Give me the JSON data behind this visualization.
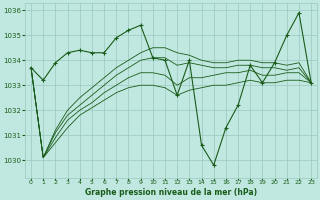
{
  "bg_color": "#c0e8e0",
  "grid_color": "#9cc8c0",
  "line_color": "#1a5c1a",
  "xlabel": "Graphe pression niveau de la mer (hPa)",
  "xlim": [
    -0.5,
    23.5
  ],
  "ylim": [
    1029.3,
    1036.3
  ],
  "yticks": [
    1030,
    1031,
    1032,
    1033,
    1034,
    1035,
    1036
  ],
  "xtick_labels": [
    "0",
    "1",
    "2",
    "3",
    "4",
    "5",
    "6",
    "7",
    "8",
    "9",
    "10",
    "11",
    "12",
    "13",
    "14",
    "15",
    "16",
    "17",
    "18",
    "19",
    "20",
    "21",
    "22",
    "23"
  ],
  "main_line": [
    1033.7,
    1033.2,
    1033.9,
    1034.3,
    1034.4,
    1034.3,
    1034.3,
    1034.9,
    1035.2,
    1035.4,
    1034.1,
    1034.0,
    1032.6,
    1034.0,
    1030.6,
    1029.8,
    1031.3,
    1032.2,
    1033.8,
    1033.1,
    1033.9,
    1035.0,
    1035.9,
    1033.1
  ],
  "trend1": [
    1033.7,
    1030.1,
    1030.7,
    1031.3,
    1031.8,
    1032.1,
    1032.4,
    1032.7,
    1032.9,
    1033.0,
    1033.0,
    1032.9,
    1032.6,
    1032.8,
    1032.9,
    1033.0,
    1033.0,
    1033.1,
    1033.2,
    1033.1,
    1033.1,
    1033.2,
    1033.2,
    1033.1
  ],
  "trend2": [
    1033.7,
    1030.1,
    1030.9,
    1031.6,
    1032.0,
    1032.3,
    1032.7,
    1033.0,
    1033.3,
    1033.5,
    1033.5,
    1033.4,
    1033.0,
    1033.3,
    1033.3,
    1033.4,
    1033.5,
    1033.5,
    1033.6,
    1033.4,
    1033.4,
    1033.5,
    1033.5,
    1033.1
  ],
  "trend3": [
    1033.7,
    1030.1,
    1031.1,
    1031.8,
    1032.2,
    1032.6,
    1033.0,
    1033.4,
    1033.7,
    1034.0,
    1034.1,
    1034.1,
    1033.8,
    1033.9,
    1033.8,
    1033.7,
    1033.7,
    1033.8,
    1033.8,
    1033.7,
    1033.7,
    1033.6,
    1033.7,
    1033.1
  ],
  "trend4": [
    1033.7,
    1030.1,
    1031.2,
    1032.0,
    1032.5,
    1032.9,
    1033.3,
    1033.7,
    1034.0,
    1034.3,
    1034.5,
    1034.5,
    1034.3,
    1034.2,
    1034.0,
    1033.9,
    1033.9,
    1034.0,
    1034.0,
    1033.9,
    1033.9,
    1033.8,
    1033.9,
    1033.1
  ]
}
